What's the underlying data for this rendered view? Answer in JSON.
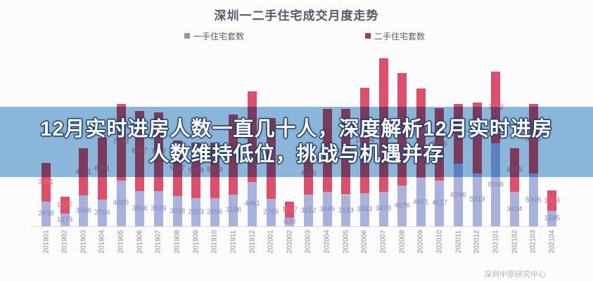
{
  "banner": {
    "line1": "12月实时进房人数一直几十人，深度解析12月实时进房",
    "line2": "人数维持低位，挑战与机遇并存",
    "background_color": "#8cb9dc",
    "text_color": "#ffffff"
  },
  "watermark": "深圳中原研究中心",
  "chart_data": {
    "type": "bar",
    "stacked": true,
    "title": "深圳一二手住宅成交月度走势",
    "xlabel": "",
    "ylabel": "",
    "ylim": [
      0,
      17000
    ],
    "grid": false,
    "legend_position": "top",
    "value_labels": "segment-centered",
    "categories": [
      "201901",
      "201902",
      "201903",
      "201904",
      "201905",
      "201906",
      "201907",
      "201908",
      "201909",
      "201910",
      "201911",
      "201912",
      "202001",
      "202002",
      "202003",
      "202004",
      "202005",
      "202006",
      "202007",
      "202008",
      "202009",
      "202010",
      "202011",
      "202012",
      "202101",
      "202102",
      "202103",
      "202104"
    ],
    "series": [
      {
        "name": "一手住宅套数",
        "color": "#a9b2dc",
        "label_color": "#7f8ab8",
        "legend_color": "#9494ad",
        "values": [
          2499,
          1279,
          3088,
          2704,
          4605,
          3506,
          3529,
          3038,
          2823,
          2856,
          3196,
          4461,
          2765,
          830,
          3152,
          3446,
          3143,
          3343,
          3478,
          4076,
          4871,
          4617,
          6296,
          5319,
          8366,
          3434,
          5305,
          1585
        ]
      },
      {
        "name": "二手住宅套数",
        "color": "#dd4f6a",
        "label_color": "#df6a80",
        "legend_color": "#b03a52",
        "values": [
          3891,
          1697,
          4761,
          6201,
          7703,
          8097,
          7907,
          5577,
          5559,
          5549,
          8043,
          9094,
          8122,
          1667,
          4296,
          8360,
          8650,
          10594,
          13407,
          11322,
          8990,
          7256,
          6017,
          7134,
          7182,
          4415,
          6985,
          1994
        ]
      }
    ]
  }
}
